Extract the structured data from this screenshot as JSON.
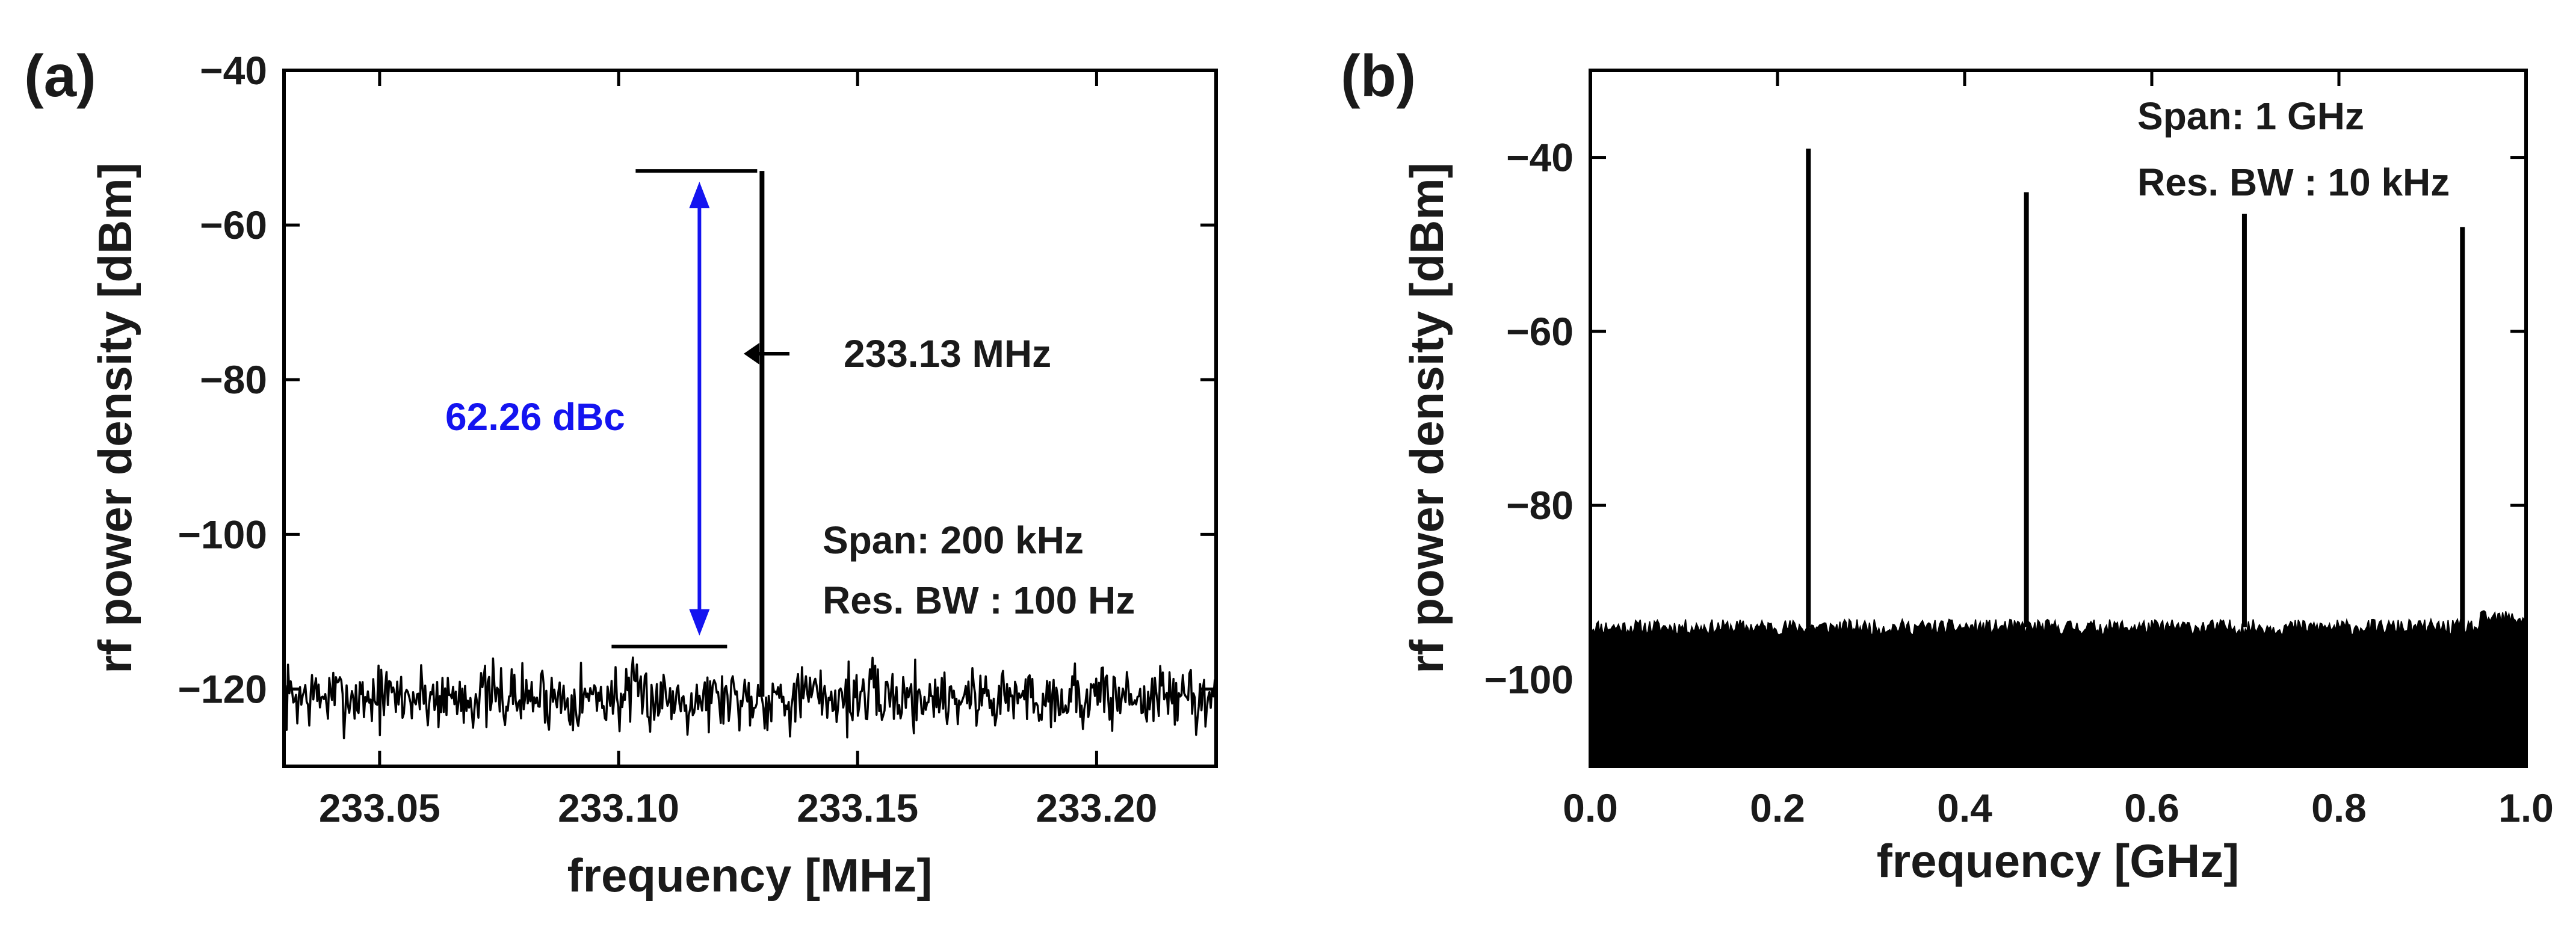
{
  "chart_data": [
    {
      "type": "line",
      "panel_label": "(a)",
      "title": "",
      "xlabel": "frequency [MHz]",
      "ylabel": "rf power density [dBm]",
      "xlim": [
        233.03,
        233.225
      ],
      "ylim": [
        -130,
        -40
      ],
      "xticks": [
        233.05,
        233.1,
        233.15,
        233.2
      ],
      "xtick_labels": [
        "233.05",
        "233.10",
        "233.15",
        "233.20"
      ],
      "yticks": [
        -120,
        -100,
        -80,
        -60,
        -40
      ],
      "ytick_labels": [
        "−120",
        "−100",
        "−80",
        "−60",
        "−40"
      ],
      "noise_floor_dbm": -121,
      "noise_floor_range_dbm": [
        -127,
        -114
      ],
      "peaks": [
        {
          "x": 233.13,
          "y": -53
        }
      ],
      "reference_levels": {
        "carrier_dbm": -53,
        "floor_dbm": -114.5
      },
      "annotations": {
        "peak_label": "233.13 MHz",
        "dbc_label": "62.26 dBc",
        "span": "Span: 200 kHz",
        "rbw": "Res. BW : 100 Hz"
      },
      "colors": {
        "trace": "#000000",
        "dbc_arrow": "#1414f0"
      }
    },
    {
      "type": "line",
      "panel_label": "(b)",
      "title": "",
      "xlabel": "frequency [GHz]",
      "ylabel": "rf power density [dBm]",
      "xlim": [
        0.0,
        1.0
      ],
      "ylim": [
        -110,
        -30
      ],
      "xticks": [
        0.0,
        0.2,
        0.4,
        0.6,
        0.8,
        1.0
      ],
      "xtick_labels": [
        "0.0",
        "0.2",
        "0.4",
        "0.6",
        "0.8",
        "1.0"
      ],
      "yticks": [
        -100,
        -80,
        -60,
        -40
      ],
      "ytick_labels": [
        "−100",
        "−80",
        "−60",
        "−40"
      ],
      "noise_floor_dbm": -94,
      "noise_floor_range_dbm": [
        -110,
        -93
      ],
      "peaks": [
        {
          "x": 0.233,
          "y": -39
        },
        {
          "x": 0.466,
          "y": -44
        },
        {
          "x": 0.699,
          "y": -46.5
        },
        {
          "x": 0.932,
          "y": -48
        }
      ],
      "annotations": {
        "span": "Span: 1 GHz",
        "rbw": "Res. BW : 10 kHz"
      },
      "colors": {
        "trace": "#000000"
      }
    }
  ]
}
